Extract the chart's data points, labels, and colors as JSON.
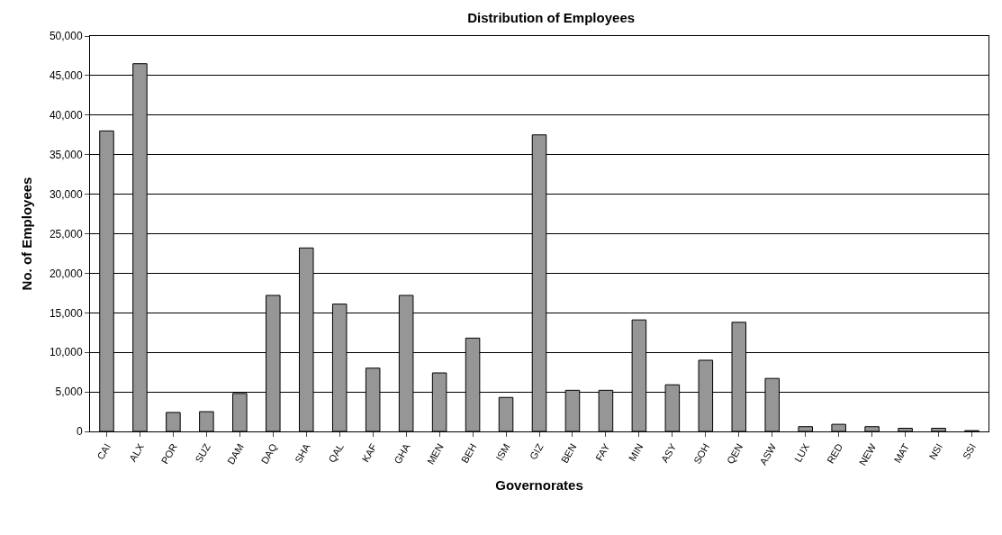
{
  "chart_data": {
    "type": "bar",
    "title": "Distribution of Employees",
    "xlabel": "Governorates",
    "ylabel": "No. of Employees",
    "categories": [
      "CAI",
      "ALX",
      "POR",
      "SUZ",
      "DAM",
      "DAQ",
      "SHA",
      "QAL",
      "KAF",
      "GHA",
      "MEN",
      "BEH",
      "ISM",
      "GIZ",
      "BEN",
      "FAY",
      "MIN",
      "ASY",
      "SOH",
      "QEN",
      "ASW",
      "LUX",
      "RED",
      "NEW",
      "MAT",
      "NSI",
      "SSI"
    ],
    "values": [
      38000,
      46500,
      2400,
      2500,
      4800,
      17200,
      23200,
      16100,
      8000,
      17200,
      7400,
      11800,
      4300,
      37500,
      5200,
      5200,
      14100,
      5900,
      9000,
      13800,
      6700,
      600,
      900,
      600,
      400,
      400,
      100
    ],
    "color": "#969696",
    "ylim": [
      0,
      50000
    ],
    "yticks": [
      {
        "value": 0,
        "label": "0"
      },
      {
        "value": 5000,
        "label": "5,000"
      },
      {
        "value": 10000,
        "label": "10,000"
      },
      {
        "value": 15000,
        "label": "15,000"
      },
      {
        "value": 20000,
        "label": "20,000"
      },
      {
        "value": 25000,
        "label": "25,000"
      },
      {
        "value": 30000,
        "label": "30,000"
      },
      {
        "value": 35000,
        "label": "35,000"
      },
      {
        "value": 40000,
        "label": "40,000"
      },
      {
        "value": 45000,
        "label": "45,000"
      },
      {
        "value": 50000,
        "label": "50,000"
      }
    ],
    "grid": "y"
  }
}
